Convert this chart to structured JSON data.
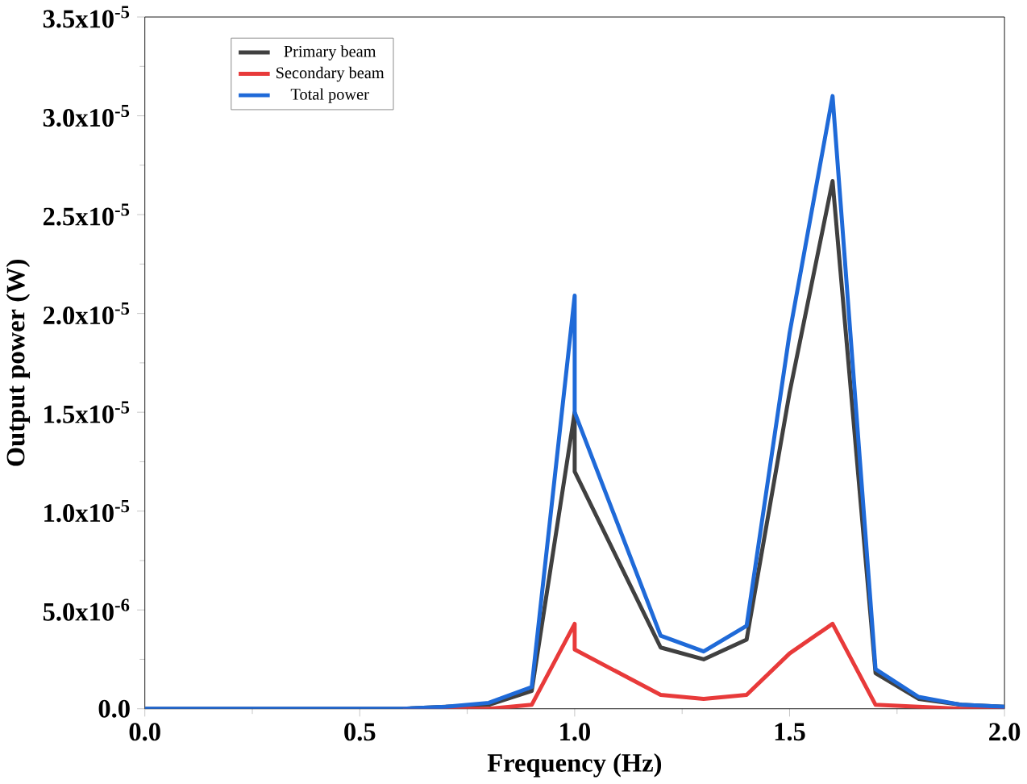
{
  "chart_data": {
    "type": "line",
    "xlabel": "Frequency (Hz)",
    "ylabel": "Output power (W)",
    "x": [
      0,
      0.1,
      0.2,
      0.3,
      0.4,
      0.5,
      0.6,
      0.7,
      0.8,
      0.9,
      1.0,
      1.0,
      1.2,
      1.3,
      1.4,
      1.5,
      1.6,
      1.7,
      1.8,
      1.9,
      2.0
    ],
    "series": [
      {
        "name": "Primary beam",
        "color": "#404040",
        "values": [
          0,
          0,
          0,
          0,
          0,
          0,
          0,
          1e-07,
          2e-07,
          9e-07,
          1.5e-05,
          1.2e-05,
          3.1e-06,
          2.5e-06,
          3.5e-06,
          1.6e-05,
          2.67e-05,
          1.8e-06,
          5e-07,
          2e-07,
          1e-07
        ]
      },
      {
        "name": "Secondary beam",
        "color": "#e83a3a",
        "values": [
          null,
          null,
          null,
          null,
          null,
          null,
          0,
          0,
          0,
          2e-07,
          4.3e-06,
          3e-06,
          7e-07,
          5e-07,
          7e-07,
          2.8e-06,
          4.3e-06,
          2e-07,
          1e-07,
          0,
          0
        ]
      },
      {
        "name": "Total power",
        "color": "#1f6ad8",
        "values": [
          0,
          0,
          0,
          0,
          0,
          0,
          0,
          1e-07,
          3e-07,
          1.1e-06,
          2.09e-05,
          1.5e-05,
          3.7e-06,
          2.9e-06,
          4.2e-06,
          1.9e-05,
          3.1e-05,
          2e-06,
          6e-07,
          2e-07,
          1e-07
        ]
      }
    ],
    "xlim": [
      0,
      2
    ],
    "ylim": [
      0,
      3.5e-05
    ],
    "xticks": [
      {
        "value": 0,
        "label": "0.0"
      },
      {
        "value": 0.5,
        "label": "0.5"
      },
      {
        "value": 1,
        "label": "1.0"
      },
      {
        "value": 1.5,
        "label": "1.5"
      },
      {
        "value": 2,
        "label": "2.0"
      }
    ],
    "yticks": [
      {
        "value": 0,
        "label": "0.0"
      },
      {
        "value": 5e-06,
        "label": "5.0x10$^{-6}$"
      },
      {
        "value": 1e-05,
        "label": "1.0x10$^{-5}$"
      },
      {
        "value": 1.5e-05,
        "label": "1.5x10$^{-5}$"
      },
      {
        "value": 2e-05,
        "label": "2.0x10$^{-5}$"
      },
      {
        "value": 2.5e-05,
        "label": "2.5x10$^{-5}$"
      },
      {
        "value": 3e-05,
        "label": "3.0x10$^{-5}$"
      },
      {
        "value": 3.5e-05,
        "label": "3.5x10$^{-5}$"
      }
    ],
    "legend": "top left",
    "grid": false,
    "marker": "none",
    "line_style": "solid"
  }
}
